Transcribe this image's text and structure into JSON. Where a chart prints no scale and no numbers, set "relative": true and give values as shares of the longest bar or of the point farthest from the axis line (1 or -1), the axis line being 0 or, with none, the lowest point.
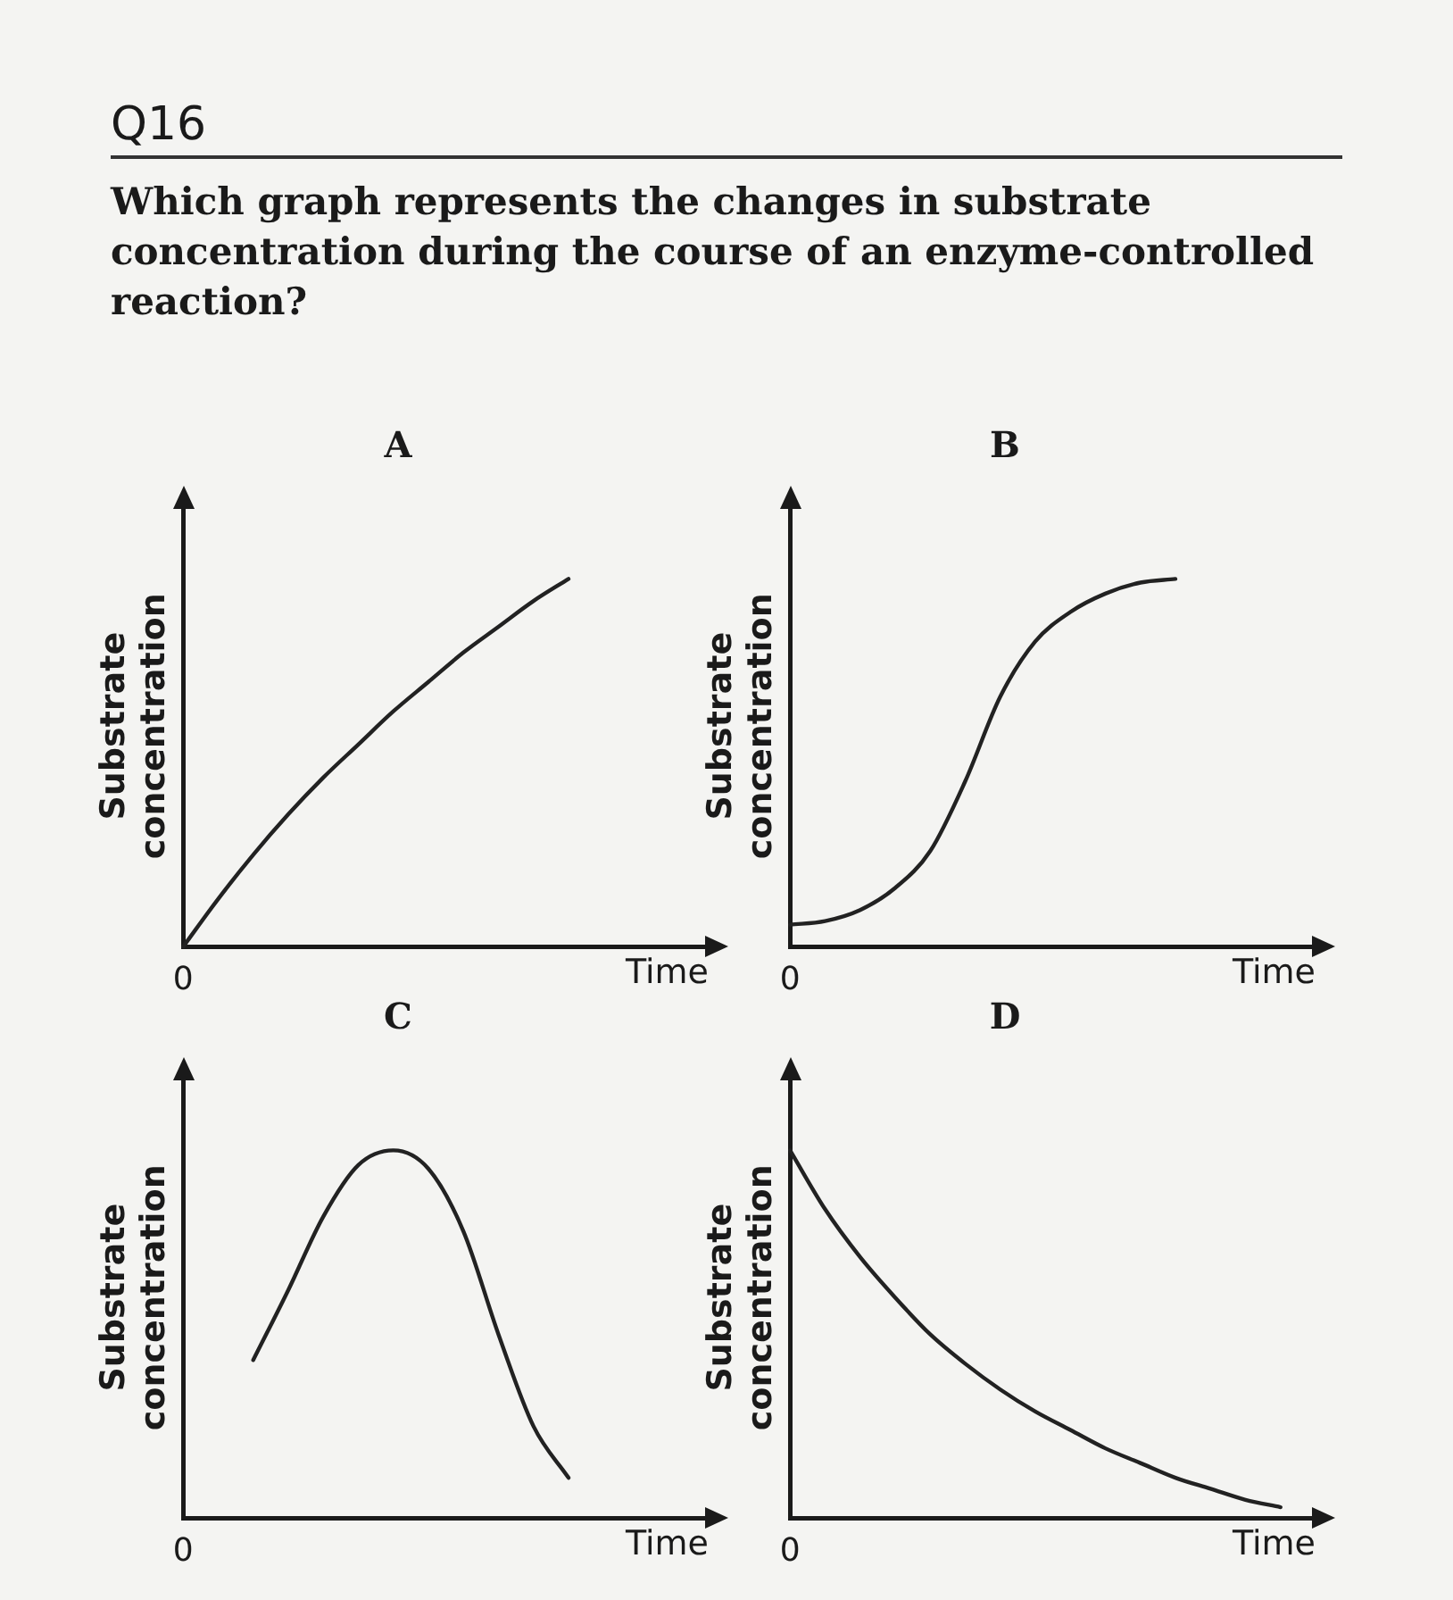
{
  "chart_data": [
    {
      "type": "line",
      "title": "A",
      "xlabel": "Time",
      "ylabel": "Substrate concentration",
      "relative": true,
      "color": "#222222",
      "marker": "none",
      "annotations": [
        "Q16",
        "Which graph represents the changes in substrate concentration during the course of an enzyme-controlled reaction?",
        "0"
      ],
      "categories": [
        null,
        null,
        null,
        null,
        null,
        null,
        null,
        null,
        null,
        null,
        null,
        null,
        null,
        null,
        null,
        null
      ],
      "values": [
        0,
        0.13,
        0.25,
        0.36,
        0.46,
        0.55,
        0.64,
        0.72,
        0.8,
        0.87,
        0.94,
        1,
        null,
        null,
        null,
        null
      ]
    },
    {
      "type": "line",
      "title": "B",
      "xlabel": "Time",
      "ylabel": "Substrate concentration",
      "relative": true,
      "color": "#222222",
      "marker": "none",
      "annotations": [
        "0"
      ],
      "categories": [
        null,
        null,
        null,
        null,
        null,
        null,
        null,
        null,
        null,
        null,
        null,
        null,
        null,
        null,
        null,
        null
      ],
      "values": [
        0.06,
        0.07,
        0.1,
        0.16,
        0.26,
        0.45,
        0.68,
        0.83,
        0.91,
        0.96,
        0.99,
        1,
        null,
        null,
        null,
        null
      ]
    },
    {
      "type": "line",
      "title": "C",
      "xlabel": "Time",
      "ylabel": "Substrate concentration",
      "relative": true,
      "color": "#222222",
      "marker": "none",
      "annotations": [
        "0"
      ],
      "categories": [
        null,
        null,
        null,
        null,
        null,
        null,
        null,
        null,
        null,
        null,
        null,
        null,
        null,
        null,
        null,
        null
      ],
      "values": [
        null,
        null,
        0.43,
        0.62,
        0.82,
        0.96,
        1,
        0.95,
        0.78,
        0.5,
        0.25,
        0.11,
        null,
        null,
        null,
        null
      ]
    },
    {
      "type": "line",
      "title": "D",
      "xlabel": "Time",
      "ylabel": "Substrate concentration",
      "relative": true,
      "color": "#222222",
      "marker": "none",
      "annotations": [
        "0"
      ],
      "categories": [
        null,
        null,
        null,
        null,
        null,
        null,
        null,
        null,
        null,
        null,
        null,
        null,
        null,
        null,
        null,
        null
      ],
      "values": [
        1,
        0.84,
        0.71,
        0.6,
        0.5,
        0.42,
        0.35,
        0.29,
        0.24,
        0.19,
        0.15,
        0.11,
        0.08,
        0.05,
        0.03,
        null
      ]
    }
  ]
}
